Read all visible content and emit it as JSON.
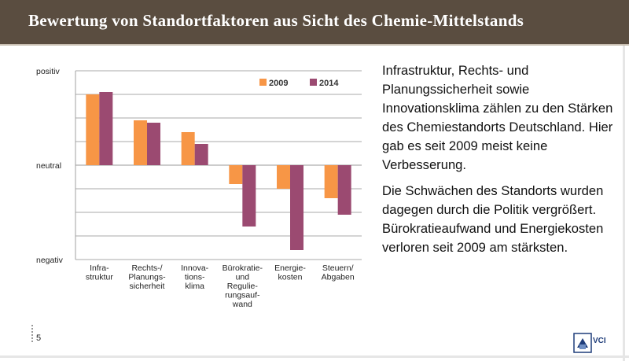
{
  "title": "Bewertung von Standortfaktoren aus Sicht des Chemie-Mittelstands",
  "description": {
    "paragraph1": "Infrastruktur, Rechts-  und Planungssicherheit sowie Innovationsklima zählen zu den Stärken des Chemiestandorts Deutschland. Hier gab es seit 2009 meist keine Verbesserung.",
    "paragraph2": "Die Schwächen des Standorts wurden dagegen durch die Politik vergrößert. Bürokratieaufwand und Energiekosten verloren seit 2009 am stärksten."
  },
  "page_number": "5",
  "logo": {
    "text": "VCI",
    "color": "#1f3d7a"
  },
  "colors": {
    "title_bar": "#5a4d40"
  },
  "chart_data": {
    "type": "bar",
    "title": "",
    "xlabel": "",
    "ylabel": "",
    "ylim": [
      -4,
      4
    ],
    "grid": true,
    "legend_position": "top-right",
    "y_tick_labels": [
      {
        "value": 4,
        "label": "positiv"
      },
      {
        "value": 0,
        "label": "neutral"
      },
      {
        "value": -4,
        "label": "negativ"
      }
    ],
    "categories": [
      [
        "Infra-",
        "struktur"
      ],
      [
        "Rechts-/",
        "Planungs-",
        "sicherheit"
      ],
      [
        "Innova-",
        "tions-",
        "klima"
      ],
      [
        "Bürokratie-",
        "und",
        "Regulie-",
        "rungsauf-",
        "wand"
      ],
      [
        "Energie-",
        "kosten"
      ],
      [
        "Steuern/",
        "Abgaben"
      ]
    ],
    "series": [
      {
        "name": "2009",
        "color": "#f79646",
        "values": [
          3.0,
          1.9,
          1.4,
          -0.8,
          -1.0,
          -1.4
        ]
      },
      {
        "name": "2014",
        "color": "#9b4a71",
        "values": [
          3.1,
          1.8,
          0.9,
          -2.6,
          -3.6,
          -2.1
        ]
      }
    ]
  }
}
